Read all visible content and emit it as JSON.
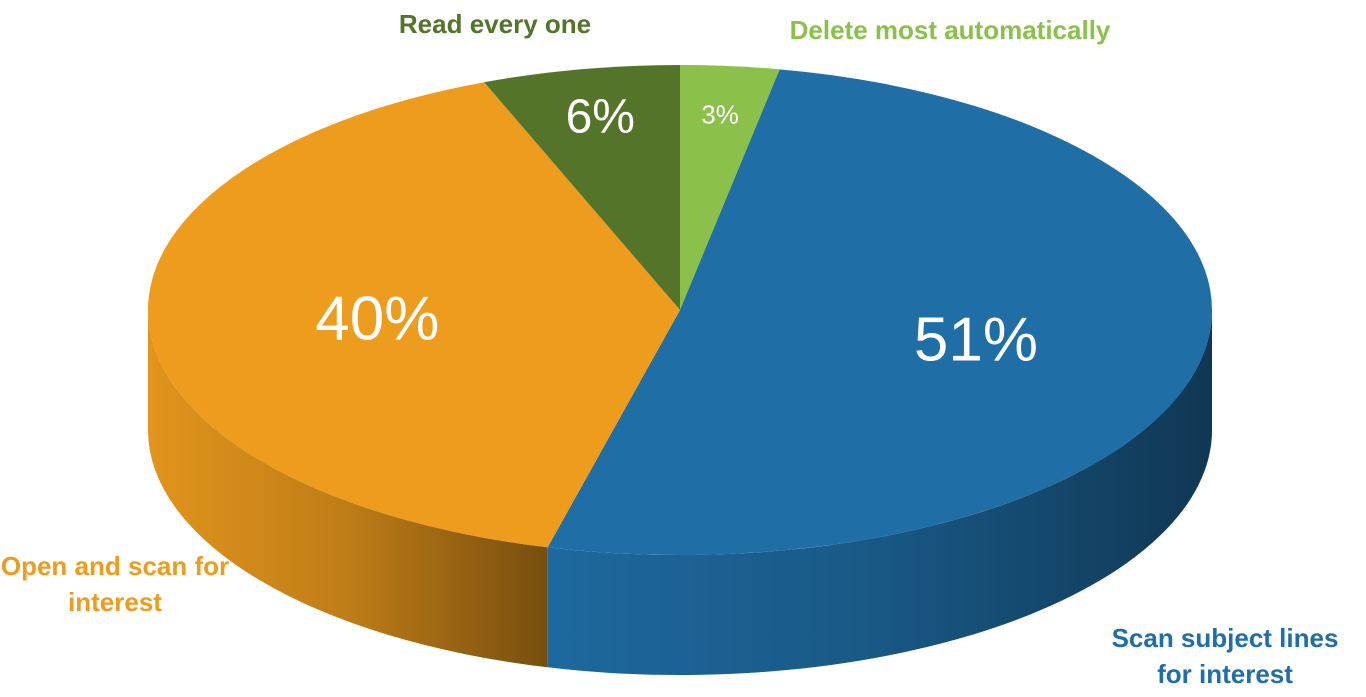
{
  "chart_data": {
    "type": "pie",
    "categories": [
      "Delete most automatically",
      "Scan subject lines for interest",
      "Open and scan for interest",
      "Read every one"
    ],
    "values": [
      3,
      51,
      40,
      6
    ],
    "value_labels": [
      "3%",
      "51%",
      "40%",
      "6%"
    ],
    "colors": [
      "#8bc04a",
      "#1f6ea6",
      "#ee9c1d",
      "#54742a"
    ]
  }
}
